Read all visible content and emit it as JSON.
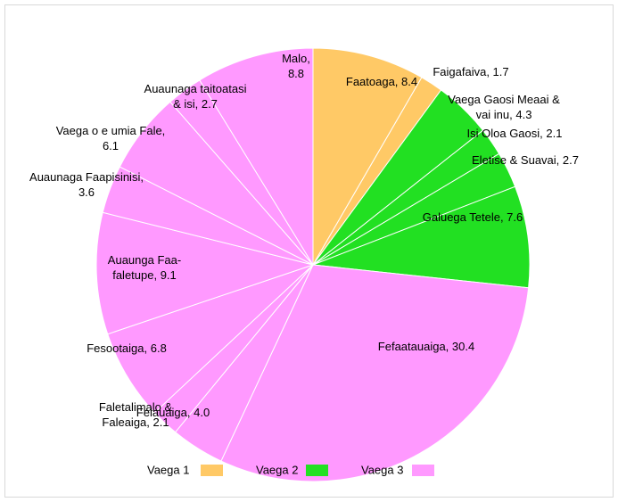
{
  "chart_data": {
    "type": "pie",
    "labels": [
      "Faatoaga, 8.4",
      "Faigafaiva, 1.7",
      "Vaega Gaosi Meaai &\nvai inu, 4.3",
      "Isi Oloa Gaosi, 2.1",
      "Eletise & Suavai, 2.7",
      "Galuega Tetele, 7.6",
      "Fefaatauaiga, 30.4",
      "Felauaiga, 4.0",
      "Faletalimalo &\nFaleaiga, 2.1",
      "Fesootaiga, 6.8",
      "Auaunga Faa-\nfaletupe, 9.1",
      "Auaunaga Faapisinisi,\n3.6",
      "Vaega o e umia Fale,\n6.1",
      "Auaunaga taitoatasi\n& isi, 2.7",
      "Malo,\n8.8"
    ],
    "values": [
      8.4,
      1.7,
      4.3,
      2.1,
      2.7,
      7.6,
      30.4,
      4.0,
      2.1,
      6.8,
      9.1,
      3.6,
      6.1,
      2.7,
      8.8
    ],
    "colors": [
      "#ffc966",
      "#ffc966",
      "#22e022",
      "#22e022",
      "#22e022",
      "#22e022",
      "#ff99ff",
      "#ff99ff",
      "#ff99ff",
      "#ff99ff",
      "#ff99ff",
      "#ff99ff",
      "#ff99ff",
      "#ff99ff",
      "#ff99ff"
    ],
    "legend": [
      {
        "name": "Vaega 1",
        "color": "#ffc966"
      },
      {
        "name": "Vaega 2",
        "color": "#22e022"
      },
      {
        "name": "Vaega 3",
        "color": "#ff99ff"
      }
    ]
  }
}
